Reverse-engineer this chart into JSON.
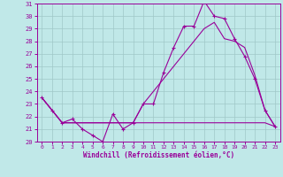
{
  "xlabel": "Windchill (Refroidissement éolien,°C)",
  "xlim_min": -0.5,
  "xlim_max": 23.5,
  "ylim_min": 20,
  "ylim_max": 31,
  "yticks": [
    20,
    21,
    22,
    23,
    24,
    25,
    26,
    27,
    28,
    29,
    30,
    31
  ],
  "xticks": [
    0,
    1,
    2,
    3,
    4,
    5,
    6,
    7,
    8,
    9,
    10,
    11,
    12,
    13,
    14,
    15,
    16,
    17,
    18,
    19,
    20,
    21,
    22,
    23
  ],
  "bg_color": "#c0e8e8",
  "line_color": "#990099",
  "grid_color": "#a0c8c8",
  "line1_x": [
    0,
    1,
    2,
    3,
    4,
    5,
    6,
    7,
    8,
    9,
    10,
    11,
    12,
    13,
    14,
    15,
    16,
    17,
    18,
    19,
    20,
    21,
    22,
    23
  ],
  "line1_y": [
    23.5,
    22.5,
    21.5,
    21.8,
    21.0,
    20.5,
    20.0,
    22.2,
    21.0,
    21.5,
    23.0,
    23.0,
    25.5,
    27.5,
    29.2,
    29.2,
    31.2,
    30.0,
    29.8,
    28.2,
    26.8,
    25.0,
    22.5,
    21.2
  ],
  "line2_x": [
    0,
    1,
    2,
    3,
    4,
    5,
    6,
    7,
    8,
    9,
    10,
    11,
    12,
    13,
    14,
    15,
    16,
    17,
    18,
    19,
    20,
    21,
    22,
    23
  ],
  "line2_y": [
    23.5,
    22.5,
    21.5,
    21.5,
    21.5,
    21.5,
    21.5,
    21.5,
    21.5,
    21.5,
    21.5,
    21.5,
    21.5,
    21.5,
    21.5,
    21.5,
    21.5,
    21.5,
    21.5,
    21.5,
    21.5,
    21.5,
    21.5,
    21.2
  ],
  "line3_x": [
    0,
    1,
    2,
    3,
    4,
    5,
    6,
    7,
    8,
    9,
    10,
    11,
    12,
    13,
    14,
    15,
    16,
    17,
    18,
    19,
    20,
    21,
    22,
    23
  ],
  "line3_y": [
    23.5,
    22.5,
    21.5,
    21.5,
    21.5,
    21.5,
    21.5,
    21.5,
    21.5,
    21.5,
    23.0,
    24.0,
    25.0,
    26.0,
    27.0,
    28.0,
    29.0,
    29.5,
    28.2,
    28.0,
    27.5,
    25.3,
    22.5,
    21.2
  ]
}
